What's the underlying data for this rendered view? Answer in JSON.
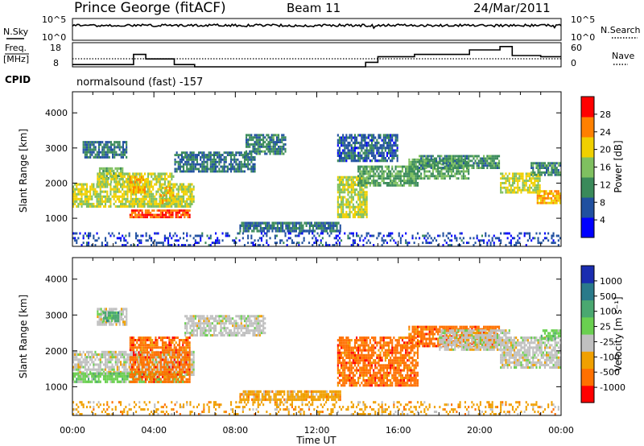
{
  "header": {
    "station": "Prince George (fitACF)",
    "beam": "Beam 11",
    "date": "24/Mar/2011"
  },
  "status_panels": {
    "nsky_label": "N.Sky",
    "nsky_ticks": [
      "10^5",
      "10^0"
    ],
    "nsearch_label": "N.Search",
    "freq_label_line1": "Freq.",
    "freq_label_line2": "[MHz]",
    "freq_ticks": [
      "18",
      "8"
    ],
    "nave_label": "Nave",
    "nave_ticks": [
      "60",
      "0"
    ],
    "cpid_label": "CPID",
    "cpid_text": "normalsound (fast) -157"
  },
  "chart_data": [
    {
      "type": "heatmap",
      "name": "power",
      "title": "",
      "xlabel": "",
      "ylabel": "Slant Range [km]",
      "xlim": [
        0,
        24
      ],
      "ylim": [
        200,
        4600
      ],
      "y_ticks": [
        "1000",
        "2000",
        "3000",
        "4000"
      ],
      "colorbar_label": "Power [dB]",
      "colorbar_ticks": [
        "4",
        "8",
        "12",
        "16",
        "20",
        "24",
        "28"
      ],
      "colorbar_range": [
        0,
        30
      ],
      "colorbar_colors": [
        "#0000ff",
        "#2050a0",
        "#3a8a5a",
        "#7fc060",
        "#f0d000",
        "#ff8000",
        "#ff0000"
      ],
      "regions": [
        {
          "t": [
            0.0,
            6.0
          ],
          "r": [
            1300,
            2000
          ],
          "level": 18
        },
        {
          "t": [
            1.3,
            2.5
          ],
          "r": [
            2100,
            2450
          ],
          "level": 14
        },
        {
          "t": [
            0.5,
            2.7
          ],
          "r": [
            2700,
            3200
          ],
          "level": 8
        },
        {
          "t": [
            1.2,
            5.0
          ],
          "r": [
            2000,
            2300
          ],
          "level": 18
        },
        {
          "t": [
            2.8,
            5.8
          ],
          "r": [
            1000,
            1250
          ],
          "level": 27
        },
        {
          "t": [
            2.8,
            3.6
          ],
          "r": [
            1700,
            2200
          ],
          "level": 22
        },
        {
          "t": [
            4.3,
            5.0
          ],
          "r": [
            1400,
            1900
          ],
          "level": 20
        },
        {
          "t": [
            5.0,
            9.0
          ],
          "r": [
            2300,
            2900
          ],
          "level": 8
        },
        {
          "t": [
            8.5,
            10.5
          ],
          "r": [
            2800,
            3400
          ],
          "level": 9
        },
        {
          "t": [
            8.2,
            13.2
          ],
          "r": [
            600,
            900
          ],
          "level": 7
        },
        {
          "t": [
            0.0,
            24.0
          ],
          "r": [
            200,
            600
          ],
          "level": 4
        },
        {
          "t": [
            13.0,
            14.5
          ],
          "r": [
            1000,
            2200
          ],
          "level": 18
        },
        {
          "t": [
            14.0,
            17.0
          ],
          "r": [
            1900,
            2500
          ],
          "level": 12
        },
        {
          "t": [
            16.5,
            19.5
          ],
          "r": [
            2100,
            2700
          ],
          "level": 12
        },
        {
          "t": [
            17.0,
            21.0
          ],
          "r": [
            2400,
            2800
          ],
          "level": 10
        },
        {
          "t": [
            21.0,
            23.0
          ],
          "r": [
            1700,
            2300
          ],
          "level": 18
        },
        {
          "t": [
            22.8,
            24.0
          ],
          "r": [
            1400,
            1800
          ],
          "level": 22
        },
        {
          "t": [
            13.0,
            16.0
          ],
          "r": [
            2600,
            3400
          ],
          "level": 6
        },
        {
          "t": [
            22.5,
            24.0
          ],
          "r": [
            2200,
            2600
          ],
          "level": 10
        }
      ]
    },
    {
      "type": "heatmap",
      "name": "velocity",
      "title": "",
      "xlabel": "Time UT",
      "ylabel": "Slant Range [km]",
      "xlim": [
        0,
        24
      ],
      "ylim": [
        200,
        4600
      ],
      "x_ticks": [
        "00:00",
        "04:00",
        "08:00",
        "12:00",
        "16:00",
        "20:00",
        "00:00"
      ],
      "y_ticks": [
        "1000",
        "2000",
        "3000",
        "4000"
      ],
      "colorbar_label": "Velocity [m s⁻¹]",
      "colorbar_ticks": [
        "1000",
        "500",
        "100",
        "25",
        "-25",
        "-100",
        "-500",
        "-1000"
      ],
      "colorbar_colors": [
        "#1a2db0",
        "#2a7a8a",
        "#4aa870",
        "#6ad050",
        "#c0c0c0",
        "#f0a000",
        "#ff7000",
        "#ff0000"
      ],
      "regions": [
        {
          "t": [
            0.0,
            6.0
          ],
          "r": [
            1300,
            2000
          ],
          "color_index": 4
        },
        {
          "t": [
            0.0,
            5.5
          ],
          "r": [
            1100,
            1400
          ],
          "color_index": 3
        },
        {
          "t": [
            1.2,
            2.7
          ],
          "r": [
            2700,
            3200
          ],
          "color_index": 4
        },
        {
          "t": [
            1.5,
            2.3
          ],
          "r": [
            2800,
            3100
          ],
          "color_index": 2
        },
        {
          "t": [
            2.8,
            5.8
          ],
          "r": [
            1100,
            2400
          ],
          "color_index": 6
        },
        {
          "t": [
            5.5,
            9.5
          ],
          "r": [
            2400,
            3000
          ],
          "color_index": 4
        },
        {
          "t": [
            8.2,
            13.2
          ],
          "r": [
            600,
            900
          ],
          "color_index": 5
        },
        {
          "t": [
            13.0,
            17.0
          ],
          "r": [
            1000,
            2400
          ],
          "color_index": 6
        },
        {
          "t": [
            16.5,
            21.0
          ],
          "r": [
            2100,
            2700
          ],
          "color_index": 6
        },
        {
          "t": [
            18.0,
            21.5
          ],
          "r": [
            2000,
            2600
          ],
          "color_index": 4
        },
        {
          "t": [
            21.0,
            24.0
          ],
          "r": [
            1500,
            2400
          ],
          "color_index": 4
        },
        {
          "t": [
            23.0,
            24.0
          ],
          "r": [
            2300,
            2600
          ],
          "color_index": 3
        },
        {
          "t": [
            0.0,
            24.0
          ],
          "r": [
            200,
            600
          ],
          "color_index": 5
        }
      ]
    }
  ],
  "status_data": {
    "freq_mhz_steps": [
      {
        "t": [
          0.0,
          3.0
        ],
        "v": 9.0
      },
      {
        "t": [
          3.0,
          3.6
        ],
        "v": 13.5
      },
      {
        "t": [
          3.6,
          5.0
        ],
        "v": 11.5
      },
      {
        "t": [
          5.0,
          6.0
        ],
        "v": 9.0
      },
      {
        "t": [
          6.0,
          14.4
        ],
        "v": 8.0
      },
      {
        "t": [
          14.4,
          15.0
        ],
        "v": 10.0
      },
      {
        "t": [
          15.0,
          16.8
        ],
        "v": 12.5
      },
      {
        "t": [
          16.8,
          19.5
        ],
        "v": 13.5
      },
      {
        "t": [
          19.5,
          21.0
        ],
        "v": 15.5
      },
      {
        "t": [
          21.0,
          21.6
        ],
        "v": 17.0
      },
      {
        "t": [
          21.6,
          23.0
        ],
        "v": 13.0
      },
      {
        "t": [
          23.0,
          24.0
        ],
        "v": 12.5
      }
    ],
    "nave_reference": 20
  }
}
